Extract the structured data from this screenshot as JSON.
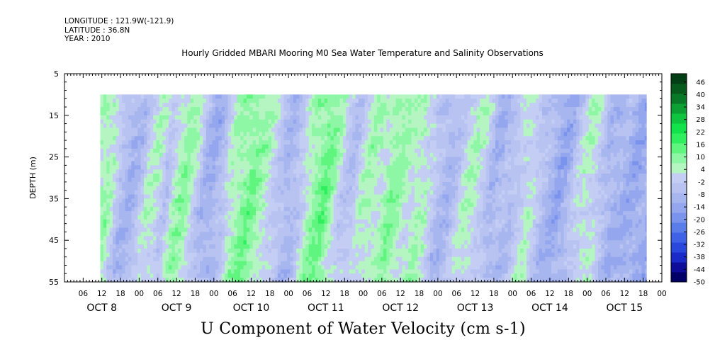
{
  "header": {
    "longitude": "LONGITUDE : 121.9W(-121.9)",
    "latitude": "LATITUDE : 36.8N",
    "year": "YEAR : 2010"
  },
  "chart_data": {
    "type": "heatmap",
    "title": "Hourly Gridded MBARI Mooring M0 Sea Water Temperature and Salinity Observations",
    "bottom_title": "U Component of Water Velocity (cm s-1)",
    "ylabel": "DEPTH (m)",
    "ylim": [
      5,
      55
    ],
    "y_inverted": true,
    "y_ticks": [
      5,
      15,
      25,
      35,
      45,
      55
    ],
    "x_hour_ticks": [
      "06",
      "12",
      "18",
      "00",
      "06",
      "12",
      "18",
      "00",
      "06",
      "12",
      "18",
      "00",
      "06",
      "12",
      "18",
      "00",
      "06",
      "12",
      "18",
      "00",
      "06",
      "12",
      "18",
      "00",
      "06",
      "12",
      "18",
      "00",
      "06",
      "12",
      "18",
      "00"
    ],
    "x_day_labels": [
      "OCT  8",
      "OCT  9",
      "OCT 10",
      "OCT 11",
      "OCT 12",
      "OCT 13",
      "OCT 14",
      "OCT 15"
    ],
    "x_start_hour_of_day": 0,
    "x_hours_total": 192,
    "data_start_hour": 11.5,
    "data_end_hour": 187,
    "data_depth_range": [
      10,
      55
    ],
    "colorbar": {
      "min": -50,
      "max": 50,
      "tick_labels": [
        "46",
        "40",
        "34",
        "28",
        "22",
        "16",
        "10",
        "4",
        "-2",
        "-8",
        "-14",
        "-20",
        "-26",
        "-32",
        "-38",
        "-44",
        "-50"
      ],
      "colors": [
        "#000066",
        "#0d0d9a",
        "#1a2ac8",
        "#2b48dd",
        "#3f62e6",
        "#5a7de9",
        "#7a93ec",
        "#94a6ee",
        "#a8b6f0",
        "#b8c3f2",
        "#c4cdf3",
        "#b5f5c2",
        "#8ef7a5",
        "#5ff57f",
        "#2fef5f",
        "#12e34a",
        "#0fc43f",
        "#0c9f33",
        "#087a27",
        "#055a1c",
        "#033f14"
      ],
      "color_min": "#000066",
      "color_max": "#033f14"
    },
    "column_profile": [
      {
        "hour": 12,
        "u": 3
      },
      {
        "hour": 15,
        "u": 8
      },
      {
        "hour": 18,
        "u": 5
      },
      {
        "hour": 21,
        "u": -6
      },
      {
        "hour": 24,
        "u": -9
      },
      {
        "hour": 27,
        "u": -7
      },
      {
        "hour": 30,
        "u": 2
      },
      {
        "hour": 33,
        "u": 4
      },
      {
        "hour": 36,
        "u": -4
      },
      {
        "hour": 39,
        "u": 6
      },
      {
        "hour": 42,
        "u": 9
      },
      {
        "hour": 45,
        "u": 2
      },
      {
        "hour": 48,
        "u": -8
      },
      {
        "hour": 51,
        "u": -11
      },
      {
        "hour": 54,
        "u": -6
      },
      {
        "hour": 57,
        "u": 5
      },
      {
        "hour": 60,
        "u": 9
      },
      {
        "hour": 63,
        "u": 11
      },
      {
        "hour": 66,
        "u": 7
      },
      {
        "hour": 69,
        "u": 3
      },
      {
        "hour": 72,
        "u": -3
      },
      {
        "hour": 75,
        "u": -9
      },
      {
        "hour": 78,
        "u": -6
      },
      {
        "hour": 81,
        "u": 4
      },
      {
        "hour": 84,
        "u": 10
      },
      {
        "hour": 87,
        "u": 12
      },
      {
        "hour": 90,
        "u": 6
      },
      {
        "hour": 93,
        "u": -2
      },
      {
        "hour": 96,
        "u": -5
      },
      {
        "hour": 99,
        "u": 3
      },
      {
        "hour": 102,
        "u": 6
      },
      {
        "hour": 105,
        "u": 4
      },
      {
        "hour": 108,
        "u": 9
      },
      {
        "hour": 111,
        "u": 7
      },
      {
        "hour": 114,
        "u": 3
      },
      {
        "hour": 117,
        "u": 6
      },
      {
        "hour": 120,
        "u": 2
      },
      {
        "hour": 123,
        "u": -6
      },
      {
        "hour": 126,
        "u": -8
      },
      {
        "hour": 129,
        "u": -4
      },
      {
        "hour": 132,
        "u": 3
      },
      {
        "hour": 135,
        "u": 4
      },
      {
        "hour": 138,
        "u": 0
      },
      {
        "hour": 141,
        "u": -9
      },
      {
        "hour": 144,
        "u": -7
      },
      {
        "hour": 147,
        "u": -6
      },
      {
        "hour": 150,
        "u": 1
      },
      {
        "hour": 153,
        "u": 3
      },
      {
        "hour": 156,
        "u": -5
      },
      {
        "hour": 159,
        "u": -9
      },
      {
        "hour": 162,
        "u": -12
      },
      {
        "hour": 165,
        "u": -10
      },
      {
        "hour": 168,
        "u": -2
      },
      {
        "hour": 171,
        "u": 4
      },
      {
        "hour": 174,
        "u": 2
      },
      {
        "hour": 177,
        "u": -7
      },
      {
        "hour": 180,
        "u": -10
      },
      {
        "hour": 183,
        "u": -9
      },
      {
        "hour": 186,
        "u": -12
      }
    ]
  }
}
